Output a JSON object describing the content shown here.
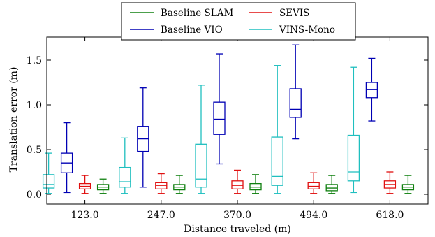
{
  "chart_data": {
    "type": "boxplot",
    "xlabel": "Distance traveled (m)",
    "ylabel": "Translation error (m)",
    "ylim": [
      -0.08,
      1.75
    ],
    "yticks": [
      0.0,
      0.5,
      1.0,
      1.5
    ],
    "ytick_labels": [
      "0.0",
      "0.5",
      "1.0",
      "1.5"
    ],
    "categories": [
      "123.0",
      "247.0",
      "370.0",
      "494.0",
      "618.0"
    ],
    "grid": false,
    "legend_position": "top-center",
    "series": [
      {
        "name": "VINS-Mono",
        "color": "#1fbfbf",
        "boxes": [
          {
            "min": 0.01,
            "q1": 0.07,
            "median": 0.11,
            "q3": 0.22,
            "max": 0.46
          },
          {
            "min": 0.01,
            "q1": 0.08,
            "median": 0.14,
            "q3": 0.3,
            "max": 0.63
          },
          {
            "min": 0.01,
            "q1": 0.08,
            "median": 0.17,
            "q3": 0.56,
            "max": 1.22
          },
          {
            "min": 0.01,
            "q1": 0.1,
            "median": 0.2,
            "q3": 0.64,
            "max": 1.44
          },
          {
            "min": 0.02,
            "q1": 0.15,
            "median": 0.25,
            "q3": 0.66,
            "max": 1.42
          }
        ]
      },
      {
        "name": "Baseline VIO",
        "color": "#0000b4",
        "boxes": [
          {
            "min": 0.02,
            "q1": 0.24,
            "median": 0.35,
            "q3": 0.46,
            "max": 0.8
          },
          {
            "min": 0.08,
            "q1": 0.48,
            "median": 0.62,
            "q3": 0.76,
            "max": 1.19
          },
          {
            "min": 0.34,
            "q1": 0.67,
            "median": 0.84,
            "q3": 1.03,
            "max": 1.57
          },
          {
            "min": 0.62,
            "q1": 0.86,
            "median": 0.95,
            "q3": 1.18,
            "max": 1.67
          },
          {
            "min": 0.82,
            "q1": 1.08,
            "median": 1.17,
            "q3": 1.25,
            "max": 1.52
          }
        ]
      },
      {
        "name": "SEVIS",
        "color": "#e01010",
        "boxes": [
          {
            "min": 0.01,
            "q1": 0.06,
            "median": 0.09,
            "q3": 0.12,
            "max": 0.21
          },
          {
            "min": 0.01,
            "q1": 0.06,
            "median": 0.1,
            "q3": 0.13,
            "max": 0.23
          },
          {
            "min": 0.01,
            "q1": 0.06,
            "median": 0.1,
            "q3": 0.15,
            "max": 0.27
          },
          {
            "min": 0.01,
            "q1": 0.06,
            "median": 0.09,
            "q3": 0.13,
            "max": 0.24
          },
          {
            "min": 0.01,
            "q1": 0.07,
            "median": 0.11,
            "q3": 0.15,
            "max": 0.25
          }
        ]
      },
      {
        "name": "Baseline SLAM",
        "color": "#108010",
        "boxes": [
          {
            "min": 0.01,
            "q1": 0.05,
            "median": 0.08,
            "q3": 0.11,
            "max": 0.17
          },
          {
            "min": 0.01,
            "q1": 0.05,
            "median": 0.08,
            "q3": 0.11,
            "max": 0.21
          },
          {
            "min": 0.01,
            "q1": 0.05,
            "median": 0.08,
            "q3": 0.12,
            "max": 0.22
          },
          {
            "min": 0.01,
            "q1": 0.04,
            "median": 0.07,
            "q3": 0.11,
            "max": 0.21
          },
          {
            "min": 0.01,
            "q1": 0.05,
            "median": 0.08,
            "q3": 0.11,
            "max": 0.21
          }
        ]
      }
    ],
    "legend": [
      {
        "label": "Baseline SLAM",
        "color": "#108010"
      },
      {
        "label": "SEVIS",
        "color": "#e01010"
      },
      {
        "label": "Baseline VIO",
        "color": "#0000b4"
      },
      {
        "label": "VINS-Mono",
        "color": "#1fbfbf"
      }
    ]
  }
}
